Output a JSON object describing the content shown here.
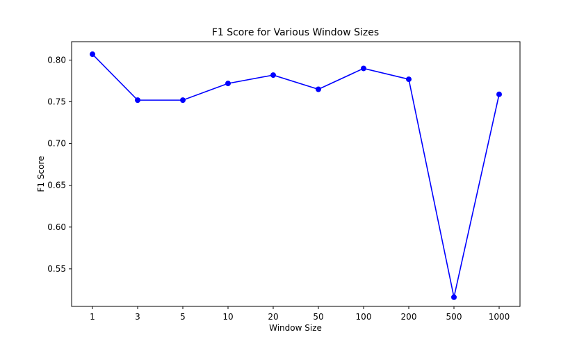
{
  "chart_data": {
    "type": "line",
    "title": "F1 Score for Various Window Sizes",
    "xlabel": "Window Size",
    "ylabel": "F1 Score",
    "categories": [
      "1",
      "3",
      "5",
      "10",
      "20",
      "50",
      "100",
      "200",
      "500",
      "1000"
    ],
    "series": [
      {
        "values": [
          0.807,
          0.752,
          0.752,
          0.772,
          0.782,
          0.765,
          0.79,
          0.777,
          0.516,
          0.759
        ],
        "color": "#0000ff",
        "marker": "circle"
      }
    ],
    "ylim": [
      0.505,
      0.822
    ],
    "yticks": [
      "0.55",
      "0.60",
      "0.65",
      "0.70",
      "0.75",
      "0.80"
    ],
    "grid": false,
    "legend": "none"
  }
}
